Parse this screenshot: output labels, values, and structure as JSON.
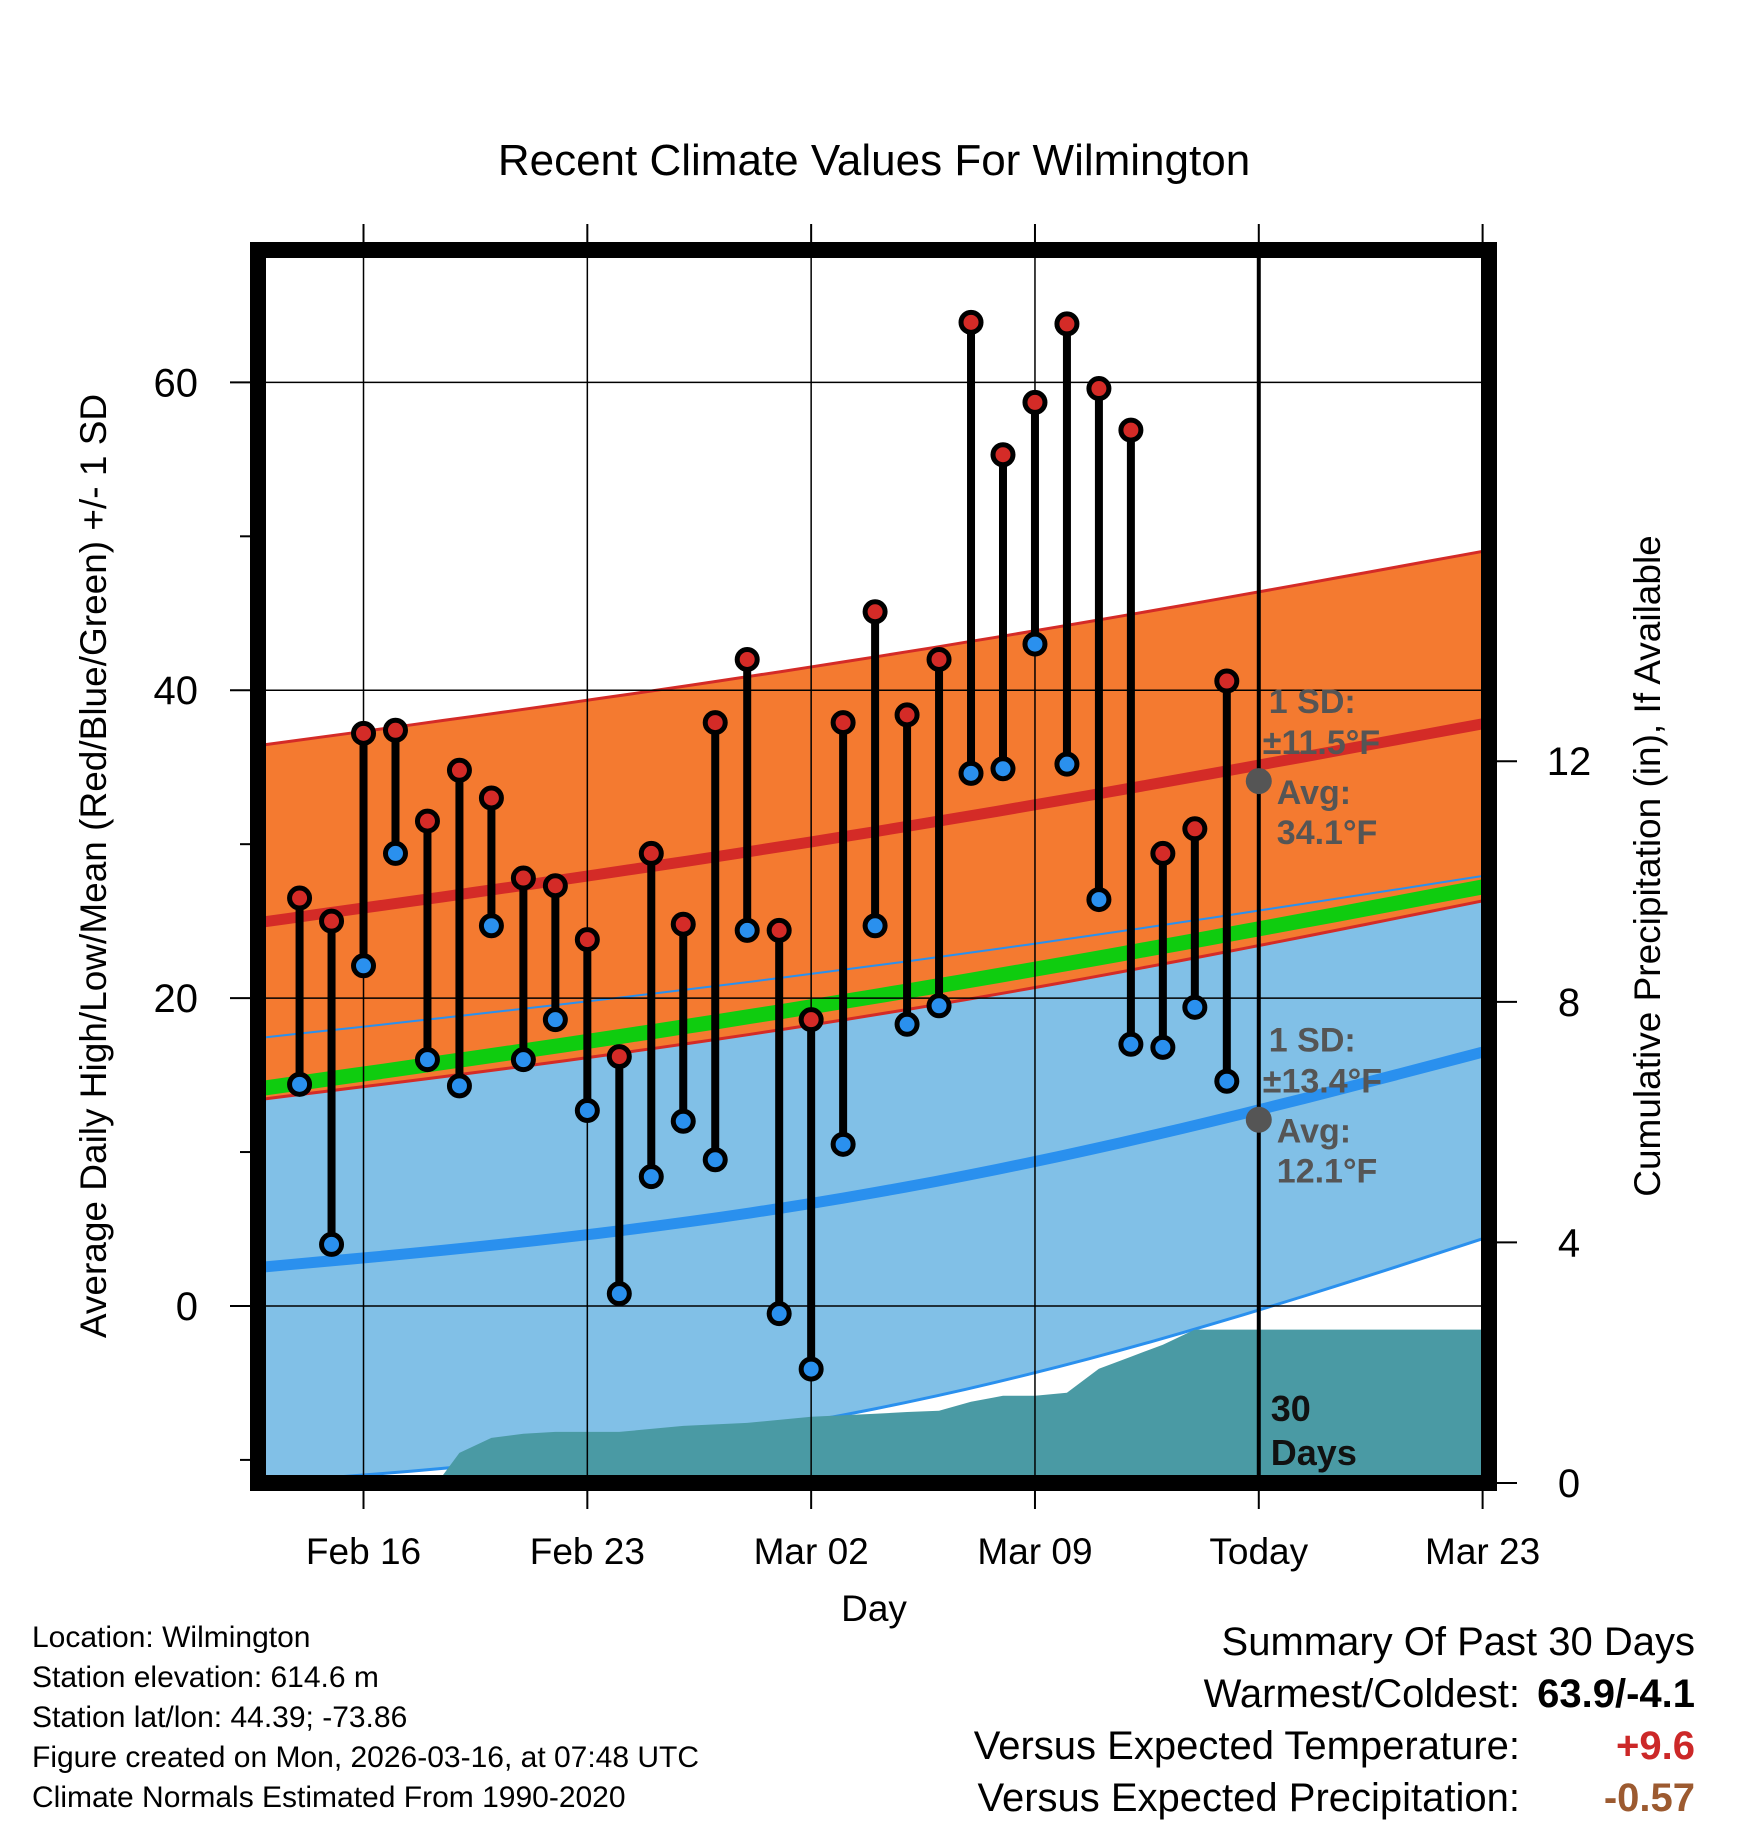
{
  "chart_data": {
    "type": "line",
    "title": "Recent Climate Values For Wilmington",
    "xlabel": "Day",
    "ylabel": "Average Daily High/Low/Mean (Red/Blue/Green) +/- 1 SD",
    "y2label": "Cumulative Precipitation (in), If Available",
    "ylim": [
      -11.5,
      68.6
    ],
    "y_ticks": [
      0,
      20,
      40,
      60
    ],
    "y_minor_ticks": [
      -10,
      10,
      30,
      50
    ],
    "y2lim": [
      0,
      20.5
    ],
    "y2_ticks": [
      0,
      4,
      8,
      12
    ],
    "xlim": [
      -14.3,
      24.2
    ],
    "x_ticks": [
      {
        "day": -11,
        "label": "Feb 16"
      },
      {
        "day": -4,
        "label": "Feb 23"
      },
      {
        "day": 3,
        "label": "Mar 02"
      },
      {
        "day": 10,
        "label": "Mar 09"
      },
      {
        "day": 17,
        "label": "Today"
      },
      {
        "day": 24,
        "label": "Mar 23"
      }
    ],
    "today_day": 17,
    "days": [
      -13,
      -12,
      -11,
      -10,
      -9,
      -8,
      -7,
      -6,
      -5,
      -4,
      -3,
      -2,
      -1,
      0,
      1,
      2,
      3,
      4,
      5,
      6,
      7,
      8,
      9,
      10,
      11,
      12,
      13,
      14,
      15,
      16
    ],
    "daily_high": [
      26.5,
      25.0,
      37.2,
      37.4,
      31.5,
      34.8,
      33.0,
      27.8,
      27.3,
      23.8,
      16.2,
      29.4,
      24.8,
      37.9,
      42.0,
      24.4,
      18.6,
      37.9,
      45.1,
      38.4,
      42.0,
      63.9,
      55.3,
      58.7,
      63.8,
      59.6,
      56.9,
      29.4,
      31.0,
      40.6
    ],
    "daily_low": [
      14.4,
      4.0,
      22.1,
      29.4,
      16.0,
      14.3,
      24.7,
      16.0,
      18.6,
      12.7,
      0.8,
      8.4,
      12.0,
      9.5,
      24.4,
      -0.5,
      -4.1,
      10.5,
      24.7,
      18.3,
      19.5,
      34.6,
      34.9,
      43.0,
      35.2,
      26.4,
      17.0,
      16.8,
      19.4,
      14.6
    ],
    "normal_high_line": {
      "x": [
        -14.3,
        24.2
      ],
      "y": [
        24.9,
        37.9
      ]
    },
    "normal_high_sd_band": {
      "lower": [
        13.4,
        26.4
      ],
      "upper": [
        36.4,
        49.1
      ]
    },
    "normal_low_line": {
      "x": [
        -14.3,
        24.2
      ],
      "y": [
        2.5,
        16.6
      ]
    },
    "normal_low_sd_band": {
      "lower": [
        -11.5,
        4.5
      ],
      "upper": [
        17.4,
        28.0
      ]
    },
    "normal_mean_line": {
      "x": [
        -14.3,
        24.2
      ],
      "y": [
        14.1,
        27.3
      ]
    },
    "cumulative_precipitation": {
      "x": [
        -8.7,
        -8.0,
        -7.0,
        -6.0,
        -5.0,
        -3.0,
        -1.0,
        1.0,
        3.0,
        5.0,
        6.0,
        7.0,
        8.0,
        9.0,
        10.0,
        11.0,
        12.0,
        13.0,
        14.0,
        15.0,
        17.0,
        24.2
      ],
      "y": [
        0,
        0.5,
        0.75,
        0.82,
        0.85,
        0.85,
        0.95,
        1.0,
        1.1,
        1.15,
        1.18,
        1.2,
        1.35,
        1.45,
        1.45,
        1.5,
        1.9,
        2.1,
        2.3,
        2.55,
        2.55,
        2.55
      ]
    },
    "annotations": {
      "high_sd_label": "1 SD:",
      "high_sd_value": "±11.5°F",
      "high_avg_label": "Avg:",
      "high_avg_value": "34.1°F",
      "high_avg_y": 34.1,
      "low_sd_label": "1 SD:",
      "low_sd_value": "±13.4°F",
      "low_avg_label": "Avg:",
      "low_avg_value": "12.1°F",
      "low_avg_y": 12.1,
      "days_count": "30",
      "days_word": "Days"
    },
    "colors": {
      "high": "#d42b27",
      "high_band": "#f47a30",
      "overlap": "#9b1316",
      "low": "#2a90ee",
      "low_band": "#81c0e7",
      "mean": "#0fcc0f",
      "precip": "#4a9aa4",
      "annotation": "#555555"
    }
  },
  "info": {
    "location": "Location: Wilmington",
    "elevation": "Station elevation: 614.6 m",
    "latlon": "Station lat/lon: 44.39; -73.86",
    "created": "Figure created on Mon, 2026-03-16, at 07:48 UTC",
    "normals": "Climate Normals Estimated From 1990-2020"
  },
  "summary": {
    "title": "Summary Of Past 30 Days",
    "warmest_label": "Warmest/Coldest:",
    "warmest_value": "63.9/-4.1",
    "temp_label": "Versus Expected Temperature:",
    "temp_value": "+9.6",
    "temp_color": "#cc2828",
    "precip_label": "Versus Expected Precipitation:",
    "precip_value": "-0.57",
    "precip_color": "#9c5a30"
  }
}
